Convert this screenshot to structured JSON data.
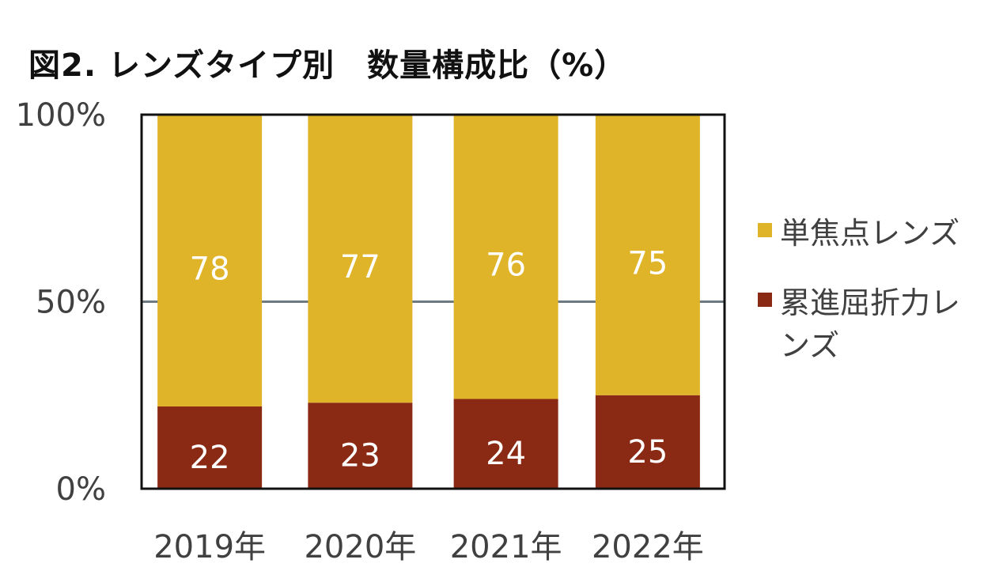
{
  "chart_data": {
    "type": "bar",
    "stacked": true,
    "title": "図2. レンズタイプ別　数量構成比（%）",
    "categories": [
      "2019年",
      "2020年",
      "2021年",
      "2022年"
    ],
    "series": [
      {
        "name": "累進屈折力レンズ",
        "values": [
          22,
          23,
          24,
          25
        ],
        "color": "#8B2A14"
      },
      {
        "name": "単焦点レンズ",
        "values": [
          78,
          77,
          76,
          75
        ],
        "color": "#E0B428"
      }
    ],
    "ylim": [
      0,
      100
    ],
    "y_ticks": [
      0,
      50,
      100
    ],
    "y_tick_labels": [
      "0%",
      "50%",
      "100%"
    ],
    "gridlines": [
      50
    ],
    "legend_position": "right",
    "xlabel": "",
    "ylabel": ""
  }
}
